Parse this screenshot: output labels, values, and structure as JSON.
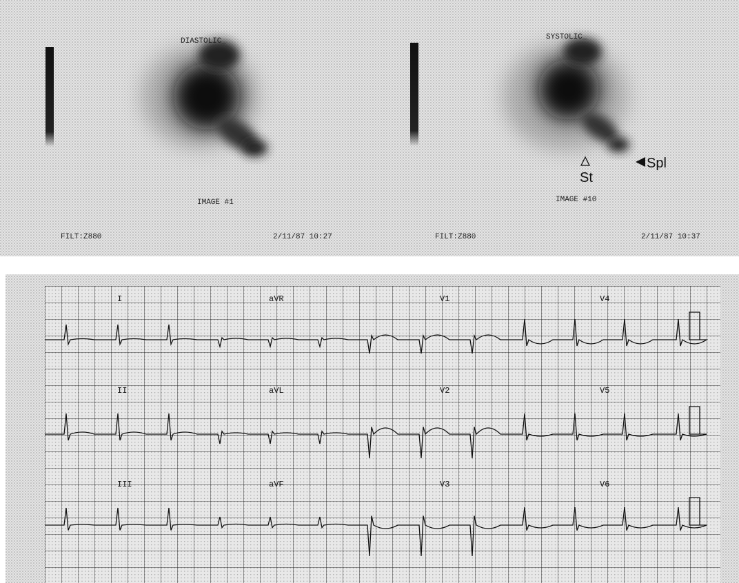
{
  "scan": {
    "panels": [
      {
        "phase": "DIASTOLIC_",
        "image": "IMAGE #1",
        "filter": "FILT:Z880",
        "timestamp": "2/11/87 10:27"
      },
      {
        "phase": "SYSTOLIC_",
        "image": "IMAGE #10",
        "filter": "FILT:Z880",
        "timestamp": "2/11/87 10:37"
      }
    ],
    "annotations": {
      "stomach": "St",
      "spleen": "Spl"
    }
  },
  "ecg": {
    "leads": [
      "I",
      "aVR",
      "V1",
      "V4",
      "II",
      "aVL",
      "V2",
      "V5",
      "III",
      "aVF",
      "V3",
      "V6"
    ]
  }
}
